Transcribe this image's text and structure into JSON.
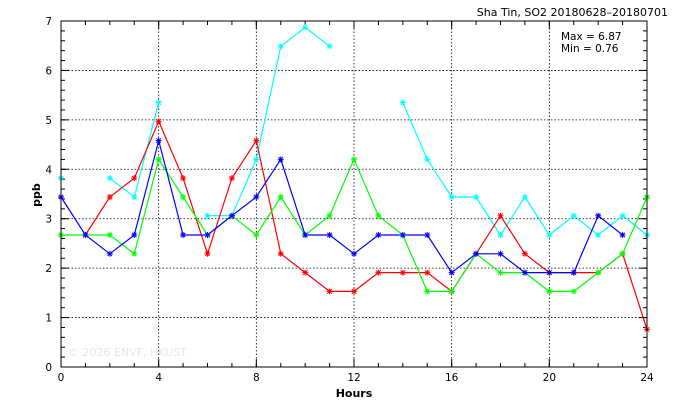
{
  "chart_data": {
    "type": "line",
    "title": "Sha Tin, SO2 20180628–20180701",
    "stats": [
      "Max = 6.87",
      "Min = 0.76"
    ],
    "watermark": "© 2026 ENVF, HKUST",
    "xlabel": "Hours",
    "ylabel": "ppb",
    "xlim": [
      0,
      24
    ],
    "ylim": [
      0,
      7
    ],
    "xticks": [
      0,
      4,
      8,
      12,
      16,
      20,
      24
    ],
    "yticks": [
      0,
      1,
      2,
      3,
      4,
      5,
      6,
      7
    ],
    "grid": true,
    "x": [
      0,
      1,
      2,
      3,
      4,
      5,
      6,
      7,
      8,
      9,
      10,
      11,
      12,
      13,
      14,
      15,
      16,
      17,
      18,
      19,
      20,
      21,
      22,
      23,
      24
    ],
    "series": [
      {
        "color": "#00ffff",
        "values": [
          3.82,
          null,
          3.82,
          3.44,
          5.35,
          null,
          3.06,
          3.06,
          4.2,
          6.49,
          6.87,
          6.49,
          null,
          null,
          5.35,
          4.2,
          3.44,
          3.44,
          2.67,
          3.44,
          2.67,
          3.06,
          2.67,
          3.06,
          2.67
        ]
      },
      {
        "color": "#ff0000",
        "values": [
          null,
          2.67,
          3.44,
          3.82,
          4.97,
          3.82,
          2.29,
          3.82,
          4.58,
          2.29,
          1.91,
          1.53,
          1.53,
          1.91,
          1.91,
          1.91,
          1.53,
          2.29,
          3.06,
          2.29,
          1.91,
          1.91,
          1.91,
          2.29,
          0.76
        ]
      },
      {
        "color": "#00ff00",
        "values": [
          2.67,
          2.67,
          2.67,
          2.29,
          4.2,
          3.44,
          2.67,
          3.06,
          2.67,
          3.44,
          2.67,
          3.06,
          4.2,
          3.06,
          2.67,
          1.53,
          1.53,
          2.29,
          1.91,
          1.91,
          1.53,
          1.53,
          1.91,
          2.29,
          3.44
        ]
      },
      {
        "color": "#0000ff",
        "values": [
          3.44,
          2.67,
          2.29,
          2.67,
          4.58,
          2.67,
          2.67,
          3.06,
          3.44,
          4.2,
          2.67,
          2.67,
          2.29,
          2.67,
          2.67,
          2.67,
          1.91,
          2.29,
          2.29,
          1.91,
          1.91,
          1.91,
          3.06,
          2.67,
          null
        ]
      }
    ]
  }
}
